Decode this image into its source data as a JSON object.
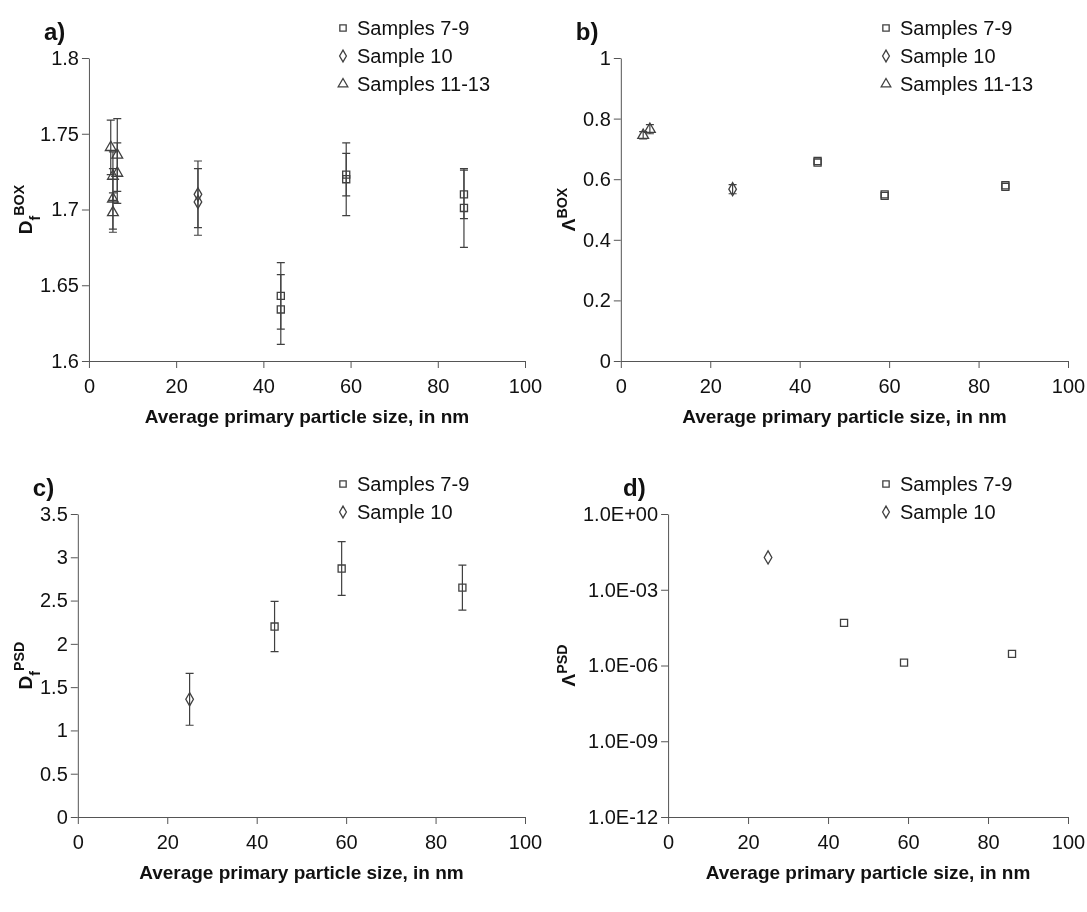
{
  "chart_data": [
    {
      "type": "scatter",
      "title": "a)",
      "xlabel": "Average primary particle size, in nm",
      "ylabel": "D$_{f}$$^{BOX}$",
      "xlim": [
        0,
        100
      ],
      "xticks": [
        0,
        20,
        40,
        60,
        80,
        100
      ],
      "ylim": [
        1.6,
        1.8
      ],
      "yticks": [
        1.6,
        1.65,
        1.7,
        1.75,
        1.8
      ],
      "legend": "top right",
      "grid": false,
      "series": [
        {
          "name": "Samples 7-9",
          "color": "#404040",
          "marker": "square",
          "x": [
            44,
            44,
            59,
            59,
            86,
            86
          ],
          "values": [
            1.643,
            1.634,
            1.723,
            1.72,
            1.71,
            1.701
          ],
          "errors": [
            0.022,
            0.023,
            0.014,
            0.024,
            0.016,
            0.026
          ]
        },
        {
          "name": "Sample 10",
          "color": "#404040",
          "marker": "diamond",
          "x": [
            25,
            25
          ],
          "values": [
            1.71,
            1.705
          ],
          "errors": [
            0.022,
            0.022
          ]
        },
        {
          "name": "Samples 11-13",
          "color": "#404040",
          "marker": "triangle",
          "x": [
            5,
            6.5,
            6.5,
            5.5,
            5.5,
            5.5
          ],
          "values": [
            1.741,
            1.736,
            1.724,
            1.722,
            1.707,
            1.698
          ],
          "errors": [
            0.018,
            0.024,
            0.02,
            0.016,
            0.02,
            0.013
          ]
        }
      ]
    },
    {
      "type": "scatter",
      "title": "b)",
      "xlabel": "Average primary particle size, in nm",
      "ylabel": "Λ$^{BOX}$",
      "xlim": [
        0,
        100
      ],
      "xticks": [
        0,
        20,
        40,
        60,
        80,
        100
      ],
      "ylim": [
        0,
        1
      ],
      "yticks": [
        0,
        0.2,
        0.4,
        0.6,
        0.8,
        1
      ],
      "legend": "top right",
      "grid": false,
      "series": [
        {
          "name": "Samples 7-9",
          "color": "#404040",
          "marker": "square",
          "x": [
            44,
            44,
            59,
            59,
            86,
            86
          ],
          "values": [
            0.66,
            0.655,
            0.55,
            0.545,
            0.58,
            0.575
          ]
        },
        {
          "name": "Sample 10",
          "color": "#404040",
          "marker": "diamond",
          "x": [
            25
          ],
          "values": [
            0.567
          ],
          "errors": [
            0.015
          ]
        },
        {
          "name": "Samples 11-13",
          "color": "#404040",
          "marker": "triangle",
          "x": [
            5,
            6.5
          ],
          "values": [
            0.745,
            0.765
          ],
          "errors": [
            0.012,
            0.015
          ]
        }
      ]
    },
    {
      "type": "scatter",
      "title": "c)",
      "xlabel": "Average primary particle size, in nm",
      "ylabel": "D$_{f}$$^{PSD}$",
      "xlim": [
        0,
        100
      ],
      "xticks": [
        0,
        20,
        40,
        60,
        80,
        100
      ],
      "ylim": [
        0,
        3.5
      ],
      "yticks": [
        0,
        0.5,
        1,
        1.5,
        2,
        2.5,
        3,
        3.5
      ],
      "legend": "top right",
      "grid": false,
      "series": [
        {
          "name": "Samples 7-9",
          "color": "#404040",
          "marker": "square",
          "x": [
            44,
            59,
            86
          ],
          "values": [
            2.2,
            2.87,
            2.65
          ],
          "errors": [
            0.29,
            0.31,
            0.26
          ]
        },
        {
          "name": "Sample 10",
          "color": "#404040",
          "marker": "diamond",
          "x": [
            25
          ],
          "values": [
            1.36
          ],
          "errors": [
            0.3
          ]
        }
      ]
    },
    {
      "type": "scatter",
      "title": "d)",
      "xlabel": "Average primary particle size, in nm",
      "ylabel": "Λ$^{PSD}$",
      "xlim": [
        0,
        100
      ],
      "xticks": [
        0,
        20,
        40,
        60,
        80,
        100
      ],
      "log": "y",
      "ylim": [
        1e-12,
        1
      ],
      "yticks": [
        {
          "value": 1e-12,
          "label": "1.0E-12"
        },
        {
          "value": 1e-09,
          "label": "1.0E-09"
        },
        {
          "value": 1e-06,
          "label": "1.0E-06"
        },
        {
          "value": 0.001,
          "label": "1.0E-03"
        },
        {
          "value": 1,
          "label": "1.0E+00"
        }
      ],
      "legend": "top right",
      "grid": false,
      "series": [
        {
          "name": "Samples 7-9",
          "color": "#404040",
          "marker": "square",
          "x": [
            44,
            59,
            86
          ],
          "values": [
            4.9e-05,
            1.3e-06,
            2.9e-06
          ]
        },
        {
          "name": "Sample 10",
          "color": "#404040",
          "marker": "diamond",
          "x": [
            25
          ],
          "values": [
            0.019
          ]
        }
      ]
    }
  ]
}
